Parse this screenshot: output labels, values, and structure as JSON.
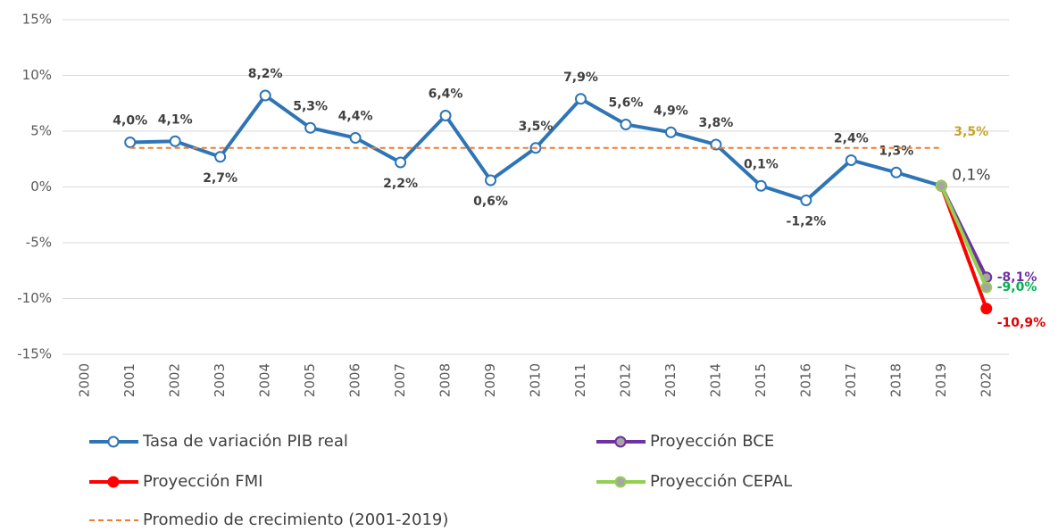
{
  "chart_data": {
    "type": "line",
    "categories": [
      "2000",
      "2001",
      "2002",
      "2003",
      "2004",
      "2005",
      "2006",
      "2007",
      "2008",
      "2009",
      "2010",
      "2011",
      "2012",
      "2013",
      "2014",
      "2015",
      "2016",
      "2017",
      "2018",
      "2019",
      "2020"
    ],
    "ylim": [
      -15,
      15
    ],
    "yticks": [
      {
        "value": -15,
        "label": "-15%"
      },
      {
        "value": -10,
        "label": "-10%"
      },
      {
        "value": -5,
        "label": "-5%"
      },
      {
        "value": 0,
        "label": "0%"
      },
      {
        "value": 5,
        "label": "5%"
      },
      {
        "value": 10,
        "label": "10%"
      },
      {
        "value": 15,
        "label": "15%"
      }
    ],
    "grid": true,
    "series": [
      {
        "name": "Tasa de variación PIB real",
        "color": "#2e75b6",
        "marker": "hollow",
        "label_color": "#404040",
        "values": [
          null,
          4.0,
          4.1,
          2.7,
          8.2,
          5.3,
          4.4,
          2.2,
          6.4,
          0.6,
          3.5,
          7.9,
          5.6,
          4.9,
          3.8,
          0.1,
          -1.2,
          2.4,
          1.3,
          0.1,
          null
        ],
        "value_labels": [
          null,
          "4,0%",
          "4,1%",
          "2,7%",
          "8,2%",
          "5,3%",
          "4,4%",
          "2,2%",
          "6,4%",
          "0,6%",
          "3,5%",
          "7,9%",
          "5,6%",
          "4,9%",
          "3,8%",
          "0,1%",
          "-1,2%",
          "2,4%",
          "1,3%",
          "0,1%",
          null
        ]
      },
      {
        "name": "Proyección BCE",
        "color": "#7030a0",
        "marker": "gray",
        "label_color": "#7030a0",
        "values": [
          null,
          null,
          null,
          null,
          null,
          null,
          null,
          null,
          null,
          null,
          null,
          null,
          null,
          null,
          null,
          null,
          null,
          null,
          null,
          0.1,
          -8.1
        ],
        "value_labels": [
          null,
          null,
          null,
          null,
          null,
          null,
          null,
          null,
          null,
          null,
          null,
          null,
          null,
          null,
          null,
          null,
          null,
          null,
          null,
          null,
          "-8,1%"
        ]
      },
      {
        "name": "Proyección FMI",
        "color": "#ff0000",
        "marker": "filled",
        "label_color": "#e00000",
        "values": [
          null,
          null,
          null,
          null,
          null,
          null,
          null,
          null,
          null,
          null,
          null,
          null,
          null,
          null,
          null,
          null,
          null,
          null,
          null,
          0.1,
          -10.9
        ],
        "value_labels": [
          null,
          null,
          null,
          null,
          null,
          null,
          null,
          null,
          null,
          null,
          null,
          null,
          null,
          null,
          null,
          null,
          null,
          null,
          null,
          null,
          "-10,9%"
        ]
      },
      {
        "name": "Proyección CEPAL",
        "color": "#92d050",
        "marker": "gray",
        "label_color": "#00b050",
        "values": [
          null,
          null,
          null,
          null,
          null,
          null,
          null,
          null,
          null,
          null,
          null,
          null,
          null,
          null,
          null,
          null,
          null,
          null,
          null,
          0.1,
          -9.0
        ],
        "value_labels": [
          null,
          null,
          null,
          null,
          null,
          null,
          null,
          null,
          null,
          null,
          null,
          null,
          null,
          null,
          null,
          null,
          null,
          null,
          null,
          null,
          "-9,0%"
        ]
      },
      {
        "name": "Promedio de crecimiento (2001-2019)",
        "color": "#ed7d31",
        "dashed": true,
        "marker": "none",
        "label_color": "#c9a227",
        "values": [
          null,
          3.5,
          3.5,
          3.5,
          3.5,
          3.5,
          3.5,
          3.5,
          3.5,
          3.5,
          3.5,
          3.5,
          3.5,
          3.5,
          3.5,
          3.5,
          3.5,
          3.5,
          3.5,
          3.5,
          null
        ],
        "value_labels": [
          null,
          null,
          null,
          null,
          null,
          null,
          null,
          null,
          null,
          null,
          null,
          null,
          null,
          null,
          null,
          null,
          null,
          null,
          null,
          "3,5%",
          null
        ]
      }
    ]
  }
}
